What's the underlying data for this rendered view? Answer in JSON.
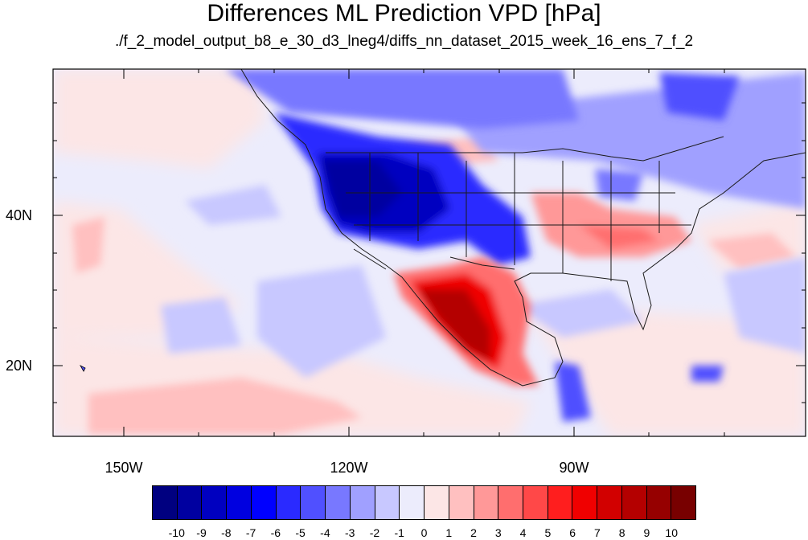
{
  "title": "Differences ML Prediction VPD [hPa]",
  "subtitle": "./f_2_model_output_b8_e_30_d3_lneg4/diffs_nn_dataset_2015_week_16_ens_7_f_2",
  "map": {
    "lat_labels": [
      "40N",
      "20N"
    ],
    "lon_labels": [
      "150W",
      "120W",
      "90W"
    ]
  },
  "colorbar": {
    "colors": [
      "#000080",
      "#0000a0",
      "#0000c0",
      "#0000e0",
      "#0000ff",
      "#2a2aff",
      "#5050ff",
      "#7878ff",
      "#a0a0ff",
      "#c8c8ff",
      "#ececfc",
      "#fce6e6",
      "#ffc0c0",
      "#ff9898",
      "#ff6e6e",
      "#ff4848",
      "#ff1e1e",
      "#f00000",
      "#d20000",
      "#b40000",
      "#960000",
      "#780000"
    ],
    "labels": [
      "-10",
      "-9",
      "-8",
      "-7",
      "-6",
      "-5",
      "-4",
      "-3",
      "-2",
      "-1",
      "0",
      "1",
      "2",
      "3",
      "4",
      "5",
      "6",
      "7",
      "8",
      "9",
      "10"
    ]
  }
}
